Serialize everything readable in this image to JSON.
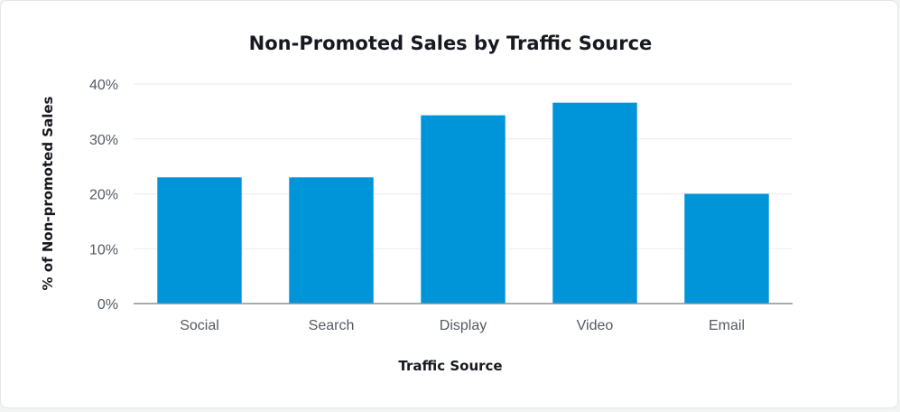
{
  "chart_data": {
    "type": "bar",
    "title": "Non-Promoted Sales by Traffic Source",
    "xlabel": "Traffic Source",
    "ylabel": "% of Non-promoted Sales",
    "categories": [
      "Social",
      "Search",
      "Display",
      "Video",
      "Email"
    ],
    "values": [
      23,
      23,
      34.3,
      36.6,
      20
    ],
    "ylim": [
      0,
      40
    ],
    "yticks": [
      {
        "value": 0,
        "label": "0%"
      },
      {
        "value": 10,
        "label": "10%"
      },
      {
        "value": 20,
        "label": "20%"
      },
      {
        "value": 30,
        "label": "30%"
      },
      {
        "value": 40,
        "label": "40%"
      }
    ],
    "grid": true,
    "bar_color": "#0095d9"
  }
}
